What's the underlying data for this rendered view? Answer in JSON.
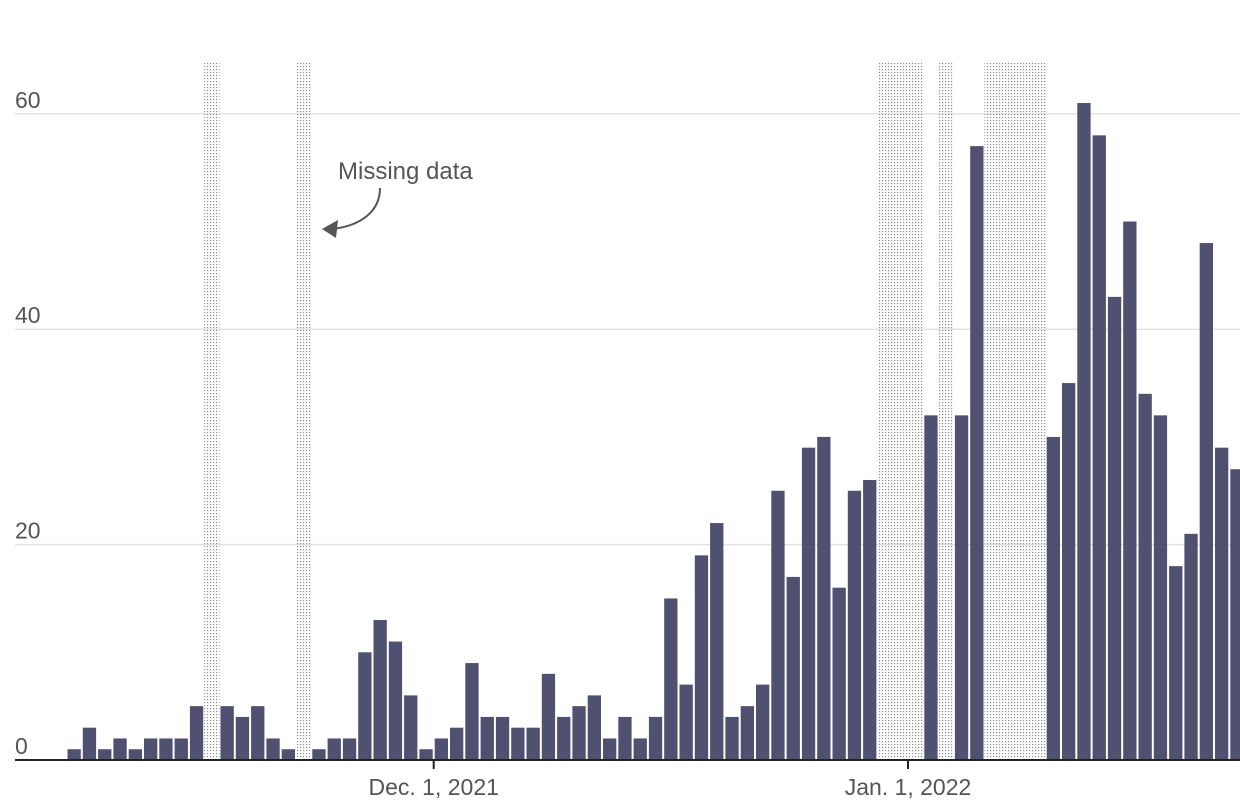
{
  "chart_data": {
    "type": "bar",
    "title": "",
    "xlabel": "",
    "ylabel": "",
    "ylim": [
      0,
      64
    ],
    "yticks": [
      0,
      20,
      40,
      60
    ],
    "grid": true,
    "bar_color": "#505070",
    "missing_color": "#8a8a8a",
    "x_start": "2021-11-07",
    "x_tick_labels": [
      {
        "date": "2021-12-01",
        "label": "Dec. 1, 2021"
      },
      {
        "date": "2022-01-01",
        "label": "Jan. 1, 2022"
      }
    ],
    "values": [
      1,
      3,
      1,
      2,
      1,
      2,
      2,
      2,
      5,
      null,
      5,
      4,
      5,
      2,
      1,
      null,
      1,
      2,
      2,
      10,
      13,
      11,
      6,
      1,
      2,
      3,
      9,
      4,
      4,
      3,
      3,
      8,
      4,
      5,
      6,
      2,
      4,
      2,
      4,
      15,
      7,
      19,
      22,
      4,
      5,
      7,
      25,
      17,
      29,
      30,
      16,
      25,
      26,
      null,
      null,
      null,
      32,
      null,
      32,
      57,
      null,
      null,
      null,
      null,
      30,
      35,
      61,
      58,
      43,
      50,
      34,
      32,
      18,
      21,
      48,
      29,
      27
    ],
    "annotations": [
      {
        "text": "Missing data",
        "points_to": "2021-11-22"
      }
    ]
  }
}
